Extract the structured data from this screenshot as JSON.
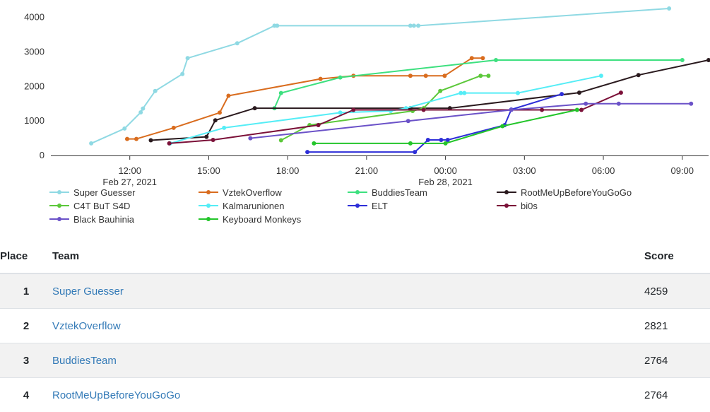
{
  "chart_data": {
    "type": "line",
    "x_ticks": [
      "12:00",
      "15:00",
      "18:00",
      "21:00",
      "00:00",
      "03:00",
      "06:00",
      "09:00"
    ],
    "date_labels": [
      {
        "at": "12:00",
        "text": "Feb 27, 2021"
      },
      {
        "at": "00:00",
        "text": "Feb 28, 2021"
      }
    ],
    "x_range": [
      "2021-02-27 09:00",
      "2021-02-28 10:00"
    ],
    "y_ticks": [
      0,
      1000,
      2000,
      3000,
      4000
    ],
    "ylim": [
      0,
      4300
    ],
    "grid": false,
    "legend_position": "bottom",
    "series": [
      {
        "name": "Super Guesser",
        "color": "#8fd9e3",
        "points": [
          [
            "2021-02-27 10:32",
            350
          ],
          [
            "2021-02-27 11:48",
            780
          ],
          [
            "2021-02-27 12:25",
            1250
          ],
          [
            "2021-02-27 12:30",
            1360
          ],
          [
            "2021-02-27 12:58",
            1870
          ],
          [
            "2021-02-27 14:00",
            2360
          ],
          [
            "2021-02-27 14:12",
            2820
          ],
          [
            "2021-02-27 16:05",
            3250
          ],
          [
            "2021-02-27 17:30",
            3760
          ],
          [
            "2021-02-27 17:36",
            3760
          ],
          [
            "2021-02-27 22:40",
            3760
          ],
          [
            "2021-02-27 22:48",
            3760
          ],
          [
            "2021-02-27 22:58",
            3760
          ],
          [
            "2021-02-28 08:30",
            4259
          ]
        ]
      },
      {
        "name": "VztekOverflow",
        "color": "#d96c1e",
        "points": [
          [
            "2021-02-27 11:54",
            480
          ],
          [
            "2021-02-27 12:15",
            480
          ],
          [
            "2021-02-27 13:40",
            800
          ],
          [
            "2021-02-27 15:25",
            1240
          ],
          [
            "2021-02-27 15:45",
            1730
          ],
          [
            "2021-02-27 19:15",
            2220
          ],
          [
            "2021-02-27 20:30",
            2310
          ],
          [
            "2021-02-27 22:40",
            2310
          ],
          [
            "2021-02-27 23:15",
            2310
          ],
          [
            "2021-02-27 23:58",
            2310
          ],
          [
            "2021-02-28 01:00",
            2821
          ],
          [
            "2021-02-28 01:25",
            2821
          ]
        ]
      },
      {
        "name": "BuddiesTeam",
        "color": "#3de07f",
        "points": [
          [
            "2021-02-27 17:30",
            1370
          ],
          [
            "2021-02-27 17:45",
            1810
          ],
          [
            "2021-02-27 20:00",
            2260
          ],
          [
            "2021-02-28 01:55",
            2764
          ],
          [
            "2021-02-28 09:00",
            2764
          ]
        ]
      },
      {
        "name": "RootMeUpBeforeYouGoGo",
        "color": "#2a1a1e",
        "points": [
          [
            "2021-02-27 12:48",
            440
          ],
          [
            "2021-02-27 14:55",
            540
          ],
          [
            "2021-02-27 15:15",
            1020
          ],
          [
            "2021-02-27 16:45",
            1370
          ],
          [
            "2021-02-27 22:40",
            1370
          ],
          [
            "2021-02-28 00:10",
            1370
          ],
          [
            "2021-02-28 05:05",
            1820
          ],
          [
            "2021-02-28 07:20",
            2330
          ],
          [
            "2021-02-28 10:00",
            2764
          ]
        ]
      },
      {
        "name": "C4T BuT S4D",
        "color": "#5cc83a",
        "points": [
          [
            "2021-02-27 17:45",
            440
          ],
          [
            "2021-02-27 18:50",
            880
          ],
          [
            "2021-02-27 22:45",
            1290
          ],
          [
            "2021-02-27 23:10",
            1370
          ],
          [
            "2021-02-27 23:48",
            1870
          ],
          [
            "2021-02-28 01:20",
            2310
          ],
          [
            "2021-02-28 01:38",
            2310
          ]
        ]
      },
      {
        "name": "Kalmarunionen",
        "color": "#55edf6",
        "points": [
          [
            "2021-02-27 13:32",
            350
          ],
          [
            "2021-02-27 15:35",
            800
          ],
          [
            "2021-02-27 20:00",
            1240
          ],
          [
            "2021-02-27 21:55",
            1290
          ],
          [
            "2021-02-27 22:30",
            1370
          ],
          [
            "2021-02-28 00:35",
            1810
          ],
          [
            "2021-02-28 00:43",
            1810
          ],
          [
            "2021-02-28 02:45",
            1810
          ],
          [
            "2021-02-28 05:55",
            2310
          ]
        ]
      },
      {
        "name": "ELT",
        "color": "#2e2fd8",
        "points": [
          [
            "2021-02-27 18:45",
            100
          ],
          [
            "2021-02-27 22:50",
            100
          ],
          [
            "2021-02-27 23:20",
            450
          ],
          [
            "2021-02-27 23:50",
            450
          ],
          [
            "2021-02-28 00:05",
            450
          ],
          [
            "2021-02-28 02:15",
            880
          ],
          [
            "2021-02-28 02:30",
            1330
          ],
          [
            "2021-02-28 04:25",
            1780
          ]
        ]
      },
      {
        "name": "bi0s",
        "color": "#7b1038",
        "points": [
          [
            "2021-02-27 13:30",
            350
          ],
          [
            "2021-02-27 15:10",
            450
          ],
          [
            "2021-02-27 19:10",
            880
          ],
          [
            "2021-02-27 20:30",
            1320
          ],
          [
            "2021-02-27 23:10",
            1320
          ],
          [
            "2021-02-28 03:40",
            1320
          ],
          [
            "2021-02-28 05:10",
            1320
          ],
          [
            "2021-02-28 06:40",
            1820
          ]
        ]
      },
      {
        "name": "Black Bauhinia",
        "color": "#6b52c8",
        "points": [
          [
            "2021-02-27 16:35",
            500
          ],
          [
            "2021-02-27 22:35",
            1000
          ],
          [
            "2021-02-28 02:30",
            1320
          ],
          [
            "2021-02-28 05:20",
            1500
          ],
          [
            "2021-02-28 06:35",
            1500
          ],
          [
            "2021-02-28 09:20",
            1500
          ]
        ]
      },
      {
        "name": "Keyboard Monkeys",
        "color": "#23c52a",
        "points": [
          [
            "2021-02-27 19:00",
            350
          ],
          [
            "2021-02-27 22:40",
            350
          ],
          [
            "2021-02-28 00:00",
            350
          ],
          [
            "2021-02-28 02:10",
            850
          ],
          [
            "2021-02-28 05:00",
            1320
          ]
        ]
      }
    ]
  },
  "scoreboard": {
    "headers": {
      "place": "Place",
      "team": "Team",
      "score": "Score"
    },
    "rows": [
      {
        "place": "1",
        "team": "Super Guesser",
        "score": "4259"
      },
      {
        "place": "2",
        "team": "VztekOverflow",
        "score": "2821"
      },
      {
        "place": "3",
        "team": "BuddiesTeam",
        "score": "2764"
      },
      {
        "place": "4",
        "team": "RootMeUpBeforeYouGoGo",
        "score": "2764"
      }
    ]
  }
}
